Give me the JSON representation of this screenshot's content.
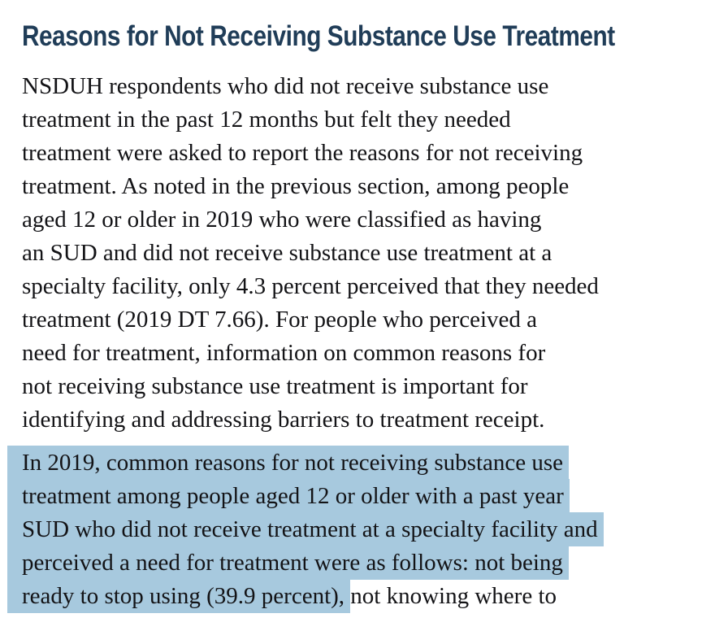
{
  "document": {
    "heading": "Reasons for Not Receiving Substance Use Treatment",
    "paragraph1": {
      "lines": [
        "NSDUH respondents who did not receive substance use",
        "treatment in the past 12 months but felt they needed",
        "treatment were asked to report the reasons for not receiving",
        "treatment. As noted in the previous section, among people",
        "aged 12 or older in 2019 who were classified as having",
        "an SUD and did not receive substance use treatment at a",
        "specialty facility, only 4.3 percent perceived that they needed",
        "treatment (2019 DT 7.66). For people who perceived a",
        "need for treatment, information on common reasons for",
        "not receiving substance use treatment is important for",
        "identifying and addressing barriers to treatment receipt."
      ]
    },
    "paragraph2": {
      "lines": [
        {
          "selected": "In 2019, common reasons for not receiving substance use ",
          "unselected": ""
        },
        {
          "selected": "treatment among people aged 12 or older with a past year ",
          "unselected": ""
        },
        {
          "selected": "SUD who did not receive treatment at a specialty facility and ",
          "unselected": ""
        },
        {
          "selected": "perceived a need for treatment were as follows: not being ",
          "unselected": ""
        },
        {
          "selected": "ready to stop using (39.9 percent), ",
          "unselected": "not knowing where to"
        }
      ]
    },
    "colors": {
      "heading_text": "#203d58",
      "body_text": "#131316",
      "selection": "#a7c9de",
      "page_background": "#ffffff"
    }
  }
}
